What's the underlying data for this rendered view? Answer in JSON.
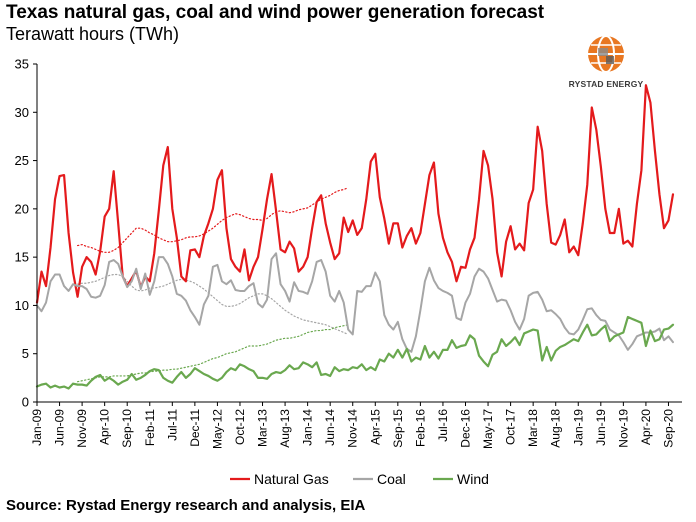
{
  "title": "Texas natural gas, coal and wind power generation forecast",
  "subtitle": "Terawatt hours (TWh)",
  "source": "Source:  Rystad Energy research and analysis, EIA",
  "logo": {
    "text": "RYSTAD ENERGY",
    "icon": "rystad-energy-globe-logo"
  },
  "colors": {
    "natural_gas": "#e41a1c",
    "coal": "#a6a6a6",
    "wind": "#6aa84f",
    "axis": "#000000"
  },
  "chart_data": {
    "type": "line",
    "ylim": [
      0,
      35
    ],
    "yticks": [
      0,
      5,
      10,
      15,
      20,
      25,
      30,
      35
    ],
    "x_start": "2009-01",
    "x_end": "2020-12",
    "xtick_labels": [
      "Jan-09",
      "Jun-09",
      "Nov-09",
      "Apr-10",
      "Sep-10",
      "Feb-11",
      "Jul-11",
      "Dec-11",
      "May-12",
      "Oct-12",
      "Mar-13",
      "Aug-13",
      "Jan-14",
      "Jun-14",
      "Nov-14",
      "Apr-15",
      "Sep-15",
      "Feb-16",
      "Jul-16",
      "Dec-16",
      "May-17",
      "Oct-17",
      "Mar-18",
      "Aug-18",
      "Jan-19",
      "Jun-19",
      "Nov-19",
      "Apr-20",
      "Sep-20"
    ],
    "series": [
      {
        "name": "Natural Gas",
        "style": "solid",
        "values": [
          10.3,
          13.5,
          12,
          16,
          21,
          23.4,
          23.5,
          17.5,
          13.4,
          10.9,
          14,
          15,
          14.5,
          13.2,
          15.6,
          19.2,
          20,
          23.9,
          18.5,
          13,
          12,
          12.8,
          13.6,
          11.9,
          13,
          12.5,
          15.4,
          19.8,
          24.5,
          26.4,
          20,
          17,
          13,
          12.5,
          15.7,
          15.8,
          15,
          17.2,
          18.5,
          20,
          23,
          24,
          18,
          14.8,
          14,
          13.5,
          15.8,
          12.6,
          14,
          15,
          17.9,
          21,
          23.6,
          19.8,
          15.8,
          15.5,
          16.6,
          15.9,
          13.5,
          14,
          15,
          18,
          20.7,
          21.4,
          18.5,
          16.5,
          14.8,
          15.4,
          19.1,
          17.6,
          18.8,
          17.3,
          18,
          21,
          24.9,
          25.7,
          21.2,
          19,
          16.4,
          18.5,
          18.5,
          16,
          17.2,
          18,
          16.4,
          17.5,
          20.5,
          23.5,
          24.8,
          19.5,
          17,
          15.5,
          14.5,
          12.5,
          14,
          13.9,
          15.8,
          17,
          21,
          26,
          24.5,
          21,
          15.5,
          13,
          16.6,
          18.2,
          15.8,
          16.4,
          15.7,
          20.6,
          22,
          28.5,
          26,
          20.5,
          16.5,
          16.3,
          17.3,
          18.9,
          15.5,
          16.1,
          15.2,
          18.5,
          22.5,
          30.5,
          28.2,
          24.4,
          20,
          17.5,
          17.5,
          20,
          16.4,
          16.7,
          16.1,
          20.5,
          24,
          32.8,
          31,
          26,
          21.5,
          18,
          18.8,
          21.5
        ]
      },
      {
        "name": "Coal",
        "style": "solid",
        "values": [
          10,
          9.4,
          10.3,
          12.5,
          13.2,
          13.2,
          12,
          11.5,
          12.2,
          12,
          12,
          11.7,
          10.9,
          10.8,
          11,
          12.1,
          14.5,
          14.7,
          14.3,
          13,
          11.9,
          12.5,
          13.8,
          11.7,
          13.3,
          11.1,
          12.5,
          15,
          15,
          14.3,
          13,
          11.2,
          11,
          10.5,
          9.5,
          8.8,
          8,
          10.1,
          11,
          14,
          14.2,
          12.5,
          12.2,
          12.6,
          11.6,
          11.5,
          11.5,
          12,
          12.3,
          10.2,
          9.8,
          10.6,
          14.8,
          15.4,
          12.2,
          11.5,
          10.4,
          12.4,
          11.5,
          11.4,
          11.2,
          12.5,
          14.5,
          14.7,
          13.5,
          11,
          10.4,
          11.5,
          10.3,
          7.5,
          7,
          11.5,
          11.4,
          12,
          12,
          13.4,
          12.5,
          9,
          8,
          7.5,
          8.3,
          6.5,
          5.5,
          5.2,
          6.8,
          9.5,
          12.5,
          13.9,
          12.6,
          11.8,
          11.5,
          11.3,
          11,
          8.7,
          8.5,
          10.3,
          11.2,
          13,
          13.8,
          13.5,
          12.8,
          11.6,
          10.4,
          10.6,
          10.5,
          9.5,
          8.3,
          7.5,
          8.6,
          11,
          11.3,
          11.4,
          10.6,
          9.4,
          9.5,
          9.1,
          8.6,
          7.7,
          7.1,
          7,
          7.5,
          8.5,
          9.6,
          9.7,
          9,
          8.5,
          8.4,
          7.5,
          7.2,
          6.9,
          6.2,
          5.4,
          6,
          6.8,
          7,
          7.2,
          7.2,
          7.3,
          7.6,
          6.4,
          6.8,
          6.2
        ]
      },
      {
        "name": "Wind",
        "style": "solid",
        "values": [
          1.6,
          1.8,
          1.9,
          1.5,
          1.7,
          1.5,
          1.6,
          1.4,
          1.9,
          1.8,
          1.8,
          1.7,
          2.2,
          2.6,
          2.8,
          2.2,
          2.5,
          2.2,
          1.8,
          2.1,
          2.3,
          2.9,
          2.3,
          2.5,
          2.8,
          3.2,
          3.4,
          3.3,
          2.5,
          2.2,
          2,
          2.6,
          3.1,
          2.5,
          2.9,
          3.5,
          3.2,
          2.9,
          2.7,
          2.4,
          2.2,
          2.5,
          3.1,
          3.5,
          3.3,
          3.9,
          3.7,
          3.4,
          3.2,
          2.5,
          2.5,
          2.4,
          2.9,
          3.1,
          3,
          3.3,
          3.8,
          3.4,
          3.5,
          4.1,
          3.9,
          3.6,
          4.1,
          2.8,
          2.9,
          2.7,
          3.6,
          3.2,
          3.4,
          3.3,
          3.6,
          3.5,
          3.9,
          3.3,
          3.6,
          3.3,
          4.4,
          4.2,
          5,
          4.6,
          5.4,
          4.6,
          5.5,
          4.2,
          4.6,
          4.4,
          5.8,
          4.6,
          5.2,
          4.5,
          5.4,
          5.4,
          6.4,
          5.6,
          5.8,
          5.9,
          6.9,
          6.5,
          4.8,
          4.2,
          3.7,
          4.9,
          5.2,
          6.5,
          5.8,
          6.2,
          6.7,
          5.9,
          7.1,
          7.3,
          7.5,
          7.4,
          4.3,
          5.7,
          4.3,
          5.3,
          5.7,
          5.9,
          6.2,
          6.5,
          6.3,
          7.2,
          8,
          6.9,
          7,
          7.5,
          7.9,
          6.3,
          6.8,
          7,
          7.2,
          8.8,
          8.6,
          8.4,
          8.2,
          5.8,
          7.4,
          6.3,
          6.5,
          7.5,
          7.6,
          8
        ]
      },
      {
        "name": "Natural Gas",
        "style": "dotted",
        "trend": true,
        "start_index": 9,
        "values": [
          16.2,
          16.3,
          16.1,
          16,
          15.8,
          15.6,
          15.5,
          15.5,
          15.7,
          16,
          16.5,
          17,
          17.5,
          18,
          18,
          17.8,
          17.5,
          17.3,
          17,
          16.8,
          16.6,
          16.6,
          16.7,
          16.8,
          17,
          17.1,
          17.1,
          17.2,
          17.4,
          17.7,
          18,
          18.4,
          18.8,
          19.1,
          19.3,
          19.5,
          19.4,
          19.2,
          19,
          18.9,
          18.9,
          18.8,
          19,
          19.4,
          19.7,
          19.8,
          19.7,
          19.6,
          19.7,
          19.9,
          20,
          20.1,
          20.4,
          20.7,
          21,
          21.2,
          21.4,
          21.7,
          21.9,
          22,
          22.2
        ]
      },
      {
        "name": "Coal",
        "style": "dotted",
        "trend": true,
        "start_index": 9,
        "values": [
          12.2,
          12.3,
          12.3,
          12.4,
          12.5,
          12.7,
          12.9,
          13.1,
          13.2,
          13.2,
          13,
          12.5,
          12,
          11.6,
          11.5,
          11.6,
          11.8,
          11.8,
          11.9,
          12,
          12.2,
          12.4,
          12.6,
          12.7,
          12.6,
          12.5,
          12.3,
          12,
          11.7,
          11.3,
          10.9,
          10.5,
          10.1,
          9.9,
          9.9,
          10,
          10.2,
          10.5,
          10.8,
          11,
          11.2,
          11.2,
          11,
          10.7,
          10.3,
          9.9,
          9.5,
          9.2,
          8.9,
          8.7,
          8.5,
          8.4,
          8.3,
          8.2,
          8.1,
          8,
          7.8,
          7.6,
          7.4,
          7.2,
          7
        ]
      },
      {
        "name": "Wind",
        "style": "dotted",
        "trend": true,
        "start_index": 9,
        "values": [
          2.1,
          2.2,
          2.3,
          2.4,
          2.5,
          2.6,
          2.6,
          2.6,
          2.7,
          2.7,
          2.7,
          2.7,
          2.8,
          2.9,
          3,
          3,
          3.1,
          3.2,
          3.2,
          3.3,
          3.3,
          3.4,
          3.4,
          3.5,
          3.6,
          3.7,
          3.8,
          3.9,
          4.1,
          4.3,
          4.5,
          4.6,
          4.8,
          5,
          5.1,
          5.2,
          5.4,
          5.6,
          5.8,
          5.8,
          5.8,
          5.9,
          6,
          6.2,
          6.4,
          6.5,
          6.6,
          6.6,
          6.7,
          6.8,
          7,
          7.2,
          7.3,
          7.4,
          7.4,
          7.5,
          7.5,
          7.7,
          7.8,
          7.9,
          8
        ]
      }
    ],
    "legend": {
      "placement": "bottom",
      "items": [
        "Natural Gas",
        "Coal",
        "Wind"
      ]
    }
  }
}
